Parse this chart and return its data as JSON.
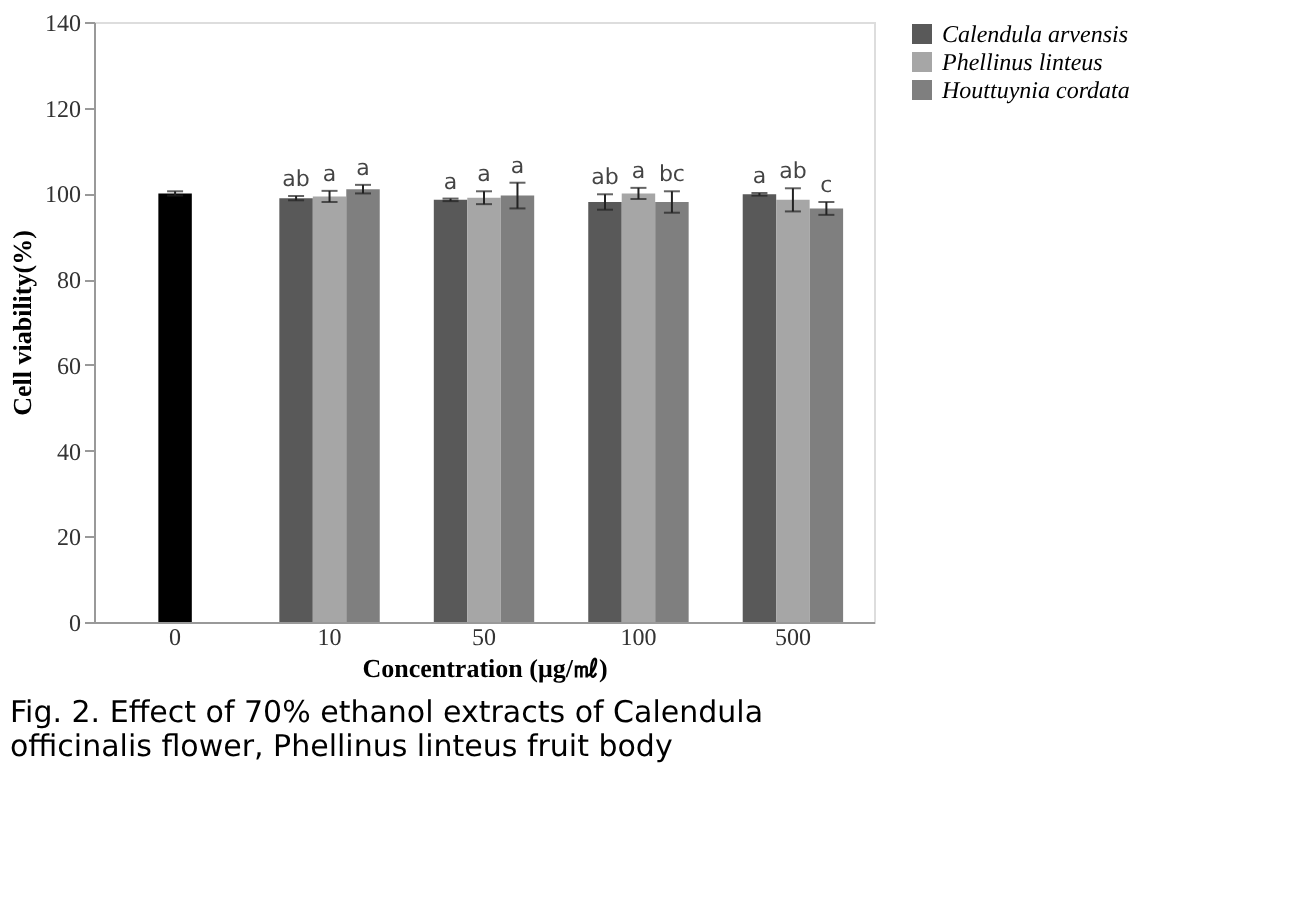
{
  "chart_data": {
    "type": "bar",
    "categories": [
      "0",
      "10",
      "50",
      "100",
      "500"
    ],
    "series": [
      {
        "color": "#000000",
        "values": [
          100,
          null,
          null,
          null,
          null
        ],
        "errors": [
          0.5,
          null,
          null,
          null,
          null
        ]
      },
      {
        "name": "Calendula arvensis",
        "color": "#595959",
        "values": [
          null,
          98.9,
          98.5,
          98,
          99.8
        ],
        "errors": [
          null,
          0.5,
          0.3,
          1.8,
          0.3
        ],
        "value_labels": [
          null,
          "ab",
          "a",
          "ab",
          "a"
        ]
      },
      {
        "name": "Phellinus linteus",
        "color": "#a6a6a6",
        "values": [
          null,
          99.3,
          99,
          100,
          98.5
        ],
        "errors": [
          null,
          1.3,
          1.5,
          1.3,
          2.7
        ],
        "value_labels": [
          null,
          "a",
          "a",
          "a",
          "ab"
        ]
      },
      {
        "name": "Houttuynia cordata",
        "color": "#7f7f7f",
        "values": [
          null,
          101,
          99.5,
          98,
          96.5
        ],
        "errors": [
          null,
          1,
          3,
          2.5,
          1.5
        ],
        "value_labels": [
          null,
          "a",
          "a",
          "bc",
          "c"
        ]
      }
    ],
    "xlabel": "Concentration (μg/㎖)",
    "ylabel": "Cell viability(%)",
    "ylim": [
      0,
      140
    ],
    "yticks": [
      0,
      20,
      40,
      60,
      80,
      100,
      120,
      140
    ],
    "grid": false,
    "legend": "right",
    "annotations": [
      "Fig. 2. Effect of 70% ethanol extracts of Calendula officinalis flower, Phellinus linteus fruit body"
    ]
  }
}
